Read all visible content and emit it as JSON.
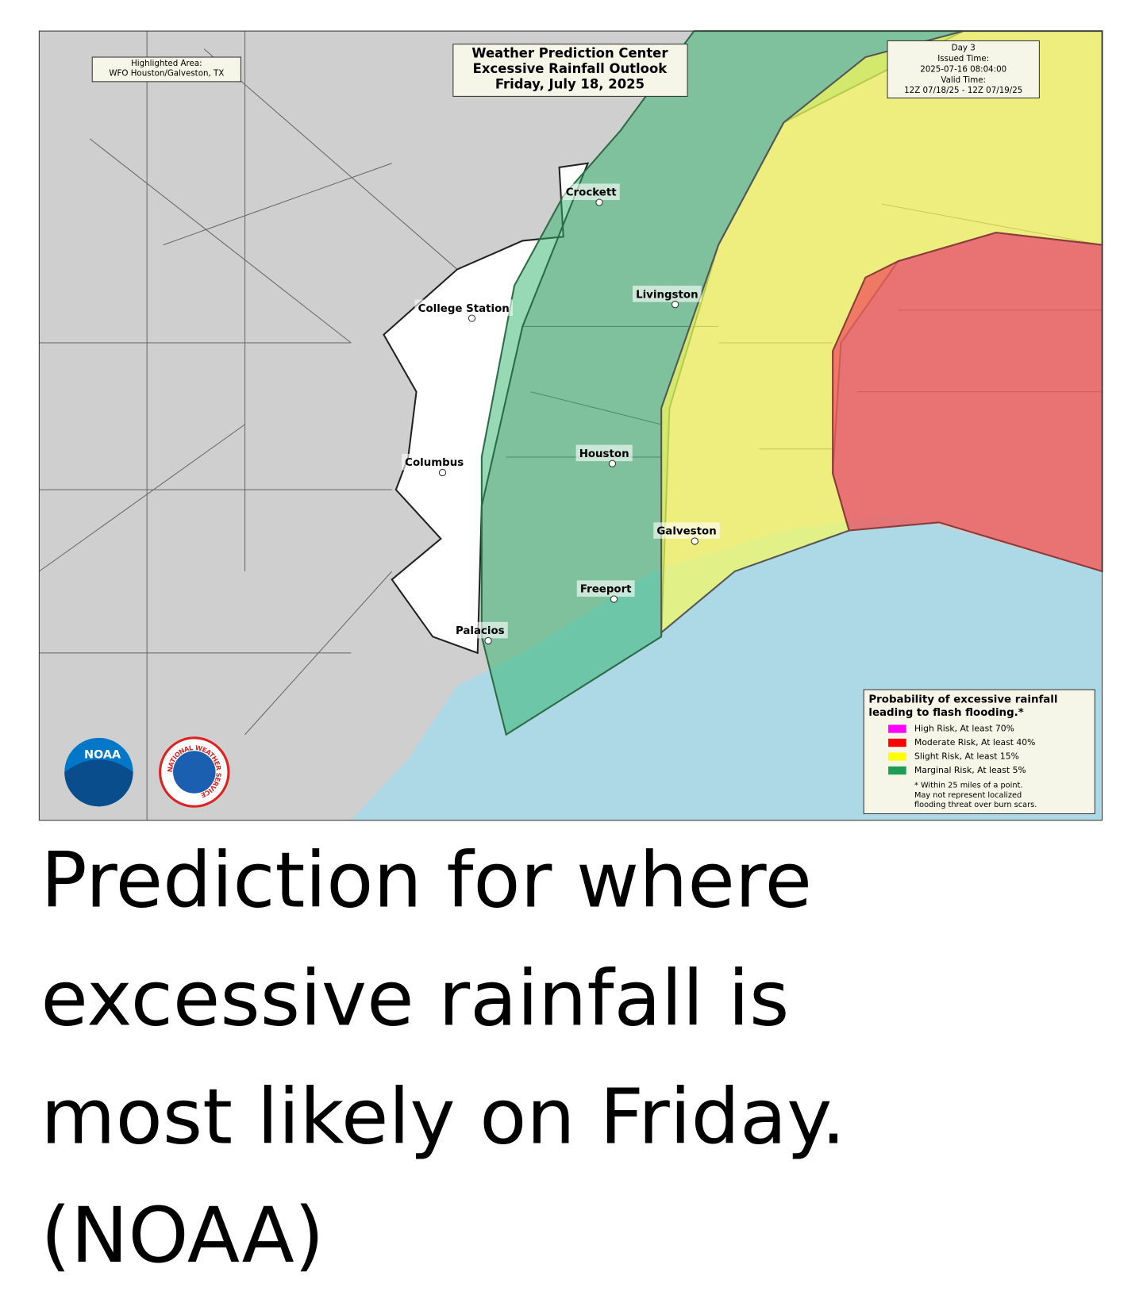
{
  "header": {
    "highlighted_area": [
      "Highlighted Area:",
      "WFO Houston/Galveston, TX"
    ],
    "title": [
      "Weather Prediction Center",
      "Excessive Rainfall Outlook",
      "Friday, July 18, 2025"
    ],
    "issue_info": [
      "Day 3",
      "Issued Time:",
      "2025-07-16 08:04:00",
      "Valid Time:",
      "12Z 07/18/25 - 12Z 07/19/25"
    ]
  },
  "cities": [
    {
      "label": "Crockett"
    },
    {
      "label": "Livingston"
    },
    {
      "label": "College Station"
    },
    {
      "label": "Houston"
    },
    {
      "label": "Columbus"
    },
    {
      "label": "Galveston"
    },
    {
      "label": "Freeport"
    },
    {
      "label": "Palacios"
    }
  ],
  "logos": {
    "noaa": "NOAA",
    "nws": "NATIONAL WEATHER SERVICE"
  },
  "legend": {
    "title": [
      "Probability of excessive rainfall",
      "leading to flash flooding.*"
    ],
    "items": [
      {
        "label": "High Risk, At least 70%",
        "color": "#ff00ff"
      },
      {
        "label": "Moderate Risk, At least 40%",
        "color": "#ff0000"
      },
      {
        "label": "Slight Risk, At least 15%",
        "color": "#ffff00"
      },
      {
        "label": "Marginal Risk, At least 5%",
        "color": "#1f9d55"
      }
    ],
    "note": [
      "* Within 25 miles of a point.",
      "May not represent localized",
      "flooding threat over burn scars."
    ]
  },
  "caption": [
    "Prediction for where",
    "excessive rainfall is",
    "most likely on Friday.",
    "(NOAA)"
  ]
}
